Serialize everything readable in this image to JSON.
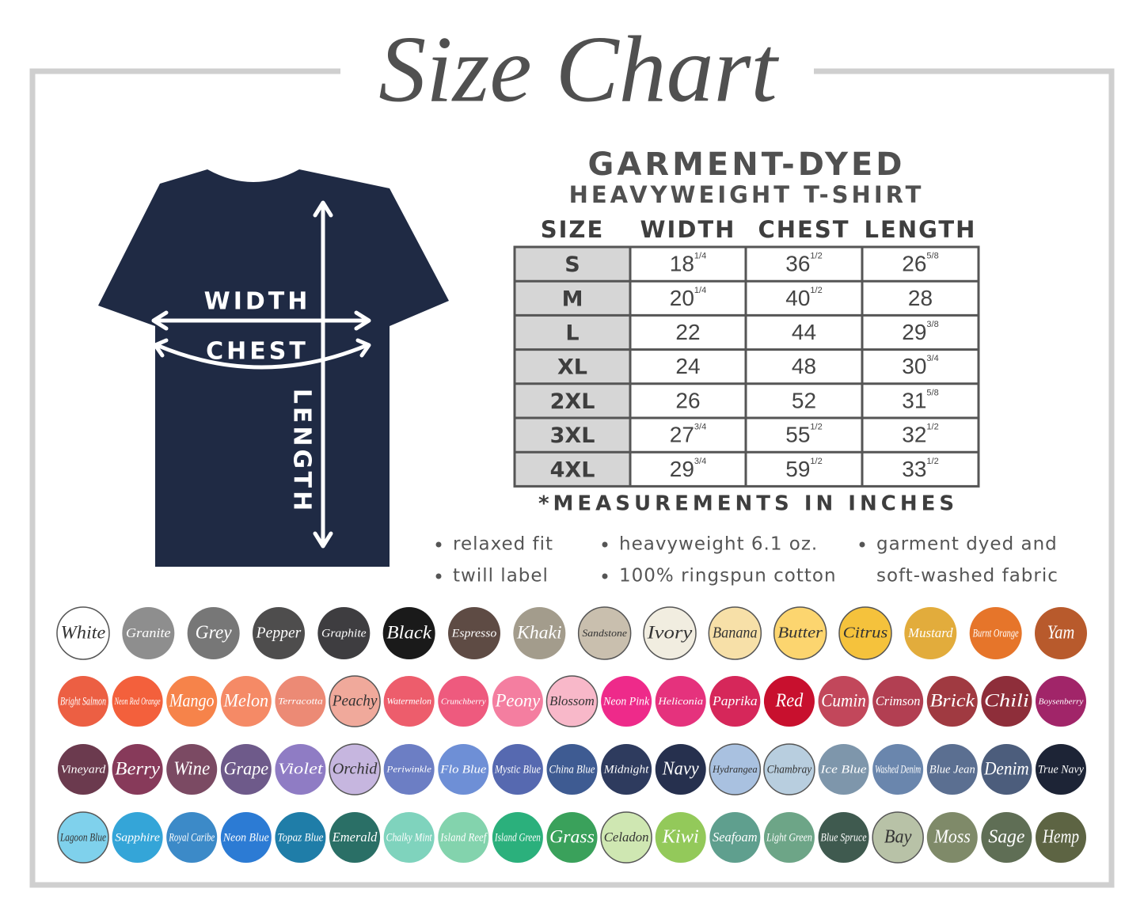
{
  "title": "Size Chart",
  "product": {
    "line1": "GARMENT-DYED",
    "line2": "HEAVYWEIGHT T-SHIRT"
  },
  "diagram": {
    "width": "WIDTH",
    "chest": "CHEST",
    "length": "LENGTH"
  },
  "table": {
    "header": [
      "SIZE",
      "WIDTH",
      "CHEST",
      "LENGTH"
    ],
    "rows": [
      [
        "S",
        {
          "main": "18",
          "sup": "1/4"
        },
        {
          "main": "36",
          "sup": "1/2"
        },
        {
          "main": "26",
          "sup": "5/8"
        }
      ],
      [
        "M",
        {
          "main": "20",
          "sup": "1/4"
        },
        {
          "main": "40",
          "sup": "1/2"
        },
        {
          "main": "28"
        }
      ],
      [
        "L",
        {
          "main": "22"
        },
        {
          "main": "44"
        },
        {
          "main": "29",
          "sup": "3/8"
        }
      ],
      [
        "XL",
        {
          "main": "24"
        },
        {
          "main": "48"
        },
        {
          "main": "30",
          "sup": "3/4"
        }
      ],
      [
        "2XL",
        {
          "main": "26"
        },
        {
          "main": "52"
        },
        {
          "main": "31",
          "sup": "5/8"
        }
      ],
      [
        "3XL",
        {
          "main": "27",
          "sup": "3/4"
        },
        {
          "main": "55",
          "sup": "1/2"
        },
        {
          "main": "32",
          "sup": "1/2"
        }
      ],
      [
        "4XL",
        {
          "main": "29",
          "sup": "3/4"
        },
        {
          "main": "59",
          "sup": "1/2"
        },
        {
          "main": "33",
          "sup": "1/2"
        }
      ]
    ]
  },
  "note": "*MEASUREMENTS IN INCHES",
  "features": [
    [
      "relaxed fit",
      "twill label"
    ],
    [
      "heavyweight 6.1 oz.",
      "100% ringspun cotton"
    ],
    [
      "garment dyed and",
      "soft-washed fabric"
    ]
  ],
  "swatches": [
    [
      {
        "name": "White",
        "color": "#ffffff"
      },
      {
        "name": "Granite",
        "color": "#8e8e8e"
      },
      {
        "name": "Grey",
        "color": "#777777"
      },
      {
        "name": "Pepper",
        "color": "#4e4d4d"
      },
      {
        "name": "Graphite",
        "color": "#3e3d40"
      },
      {
        "name": "Black",
        "color": "#1a1a1a"
      },
      {
        "name": "Espresso",
        "color": "#5e4b44"
      },
      {
        "name": "Khaki",
        "color": "#a39c8c"
      },
      {
        "name": "Sandstone",
        "color": "#c9bfae"
      },
      {
        "name": "Ivory",
        "color": "#f1ede0"
      },
      {
        "name": "Banana",
        "color": "#f7e0a8"
      },
      {
        "name": "Butter",
        "color": "#fcd56f"
      },
      {
        "name": "Citrus",
        "color": "#f5c23c"
      },
      {
        "name": "Mustard",
        "color": "#e2ac3c"
      },
      {
        "name": "Burnt Orange",
        "color": "#e6752a"
      },
      {
        "name": "Yam",
        "color": "#b85a2c"
      }
    ],
    [
      {
        "name": "Bright Salmon",
        "color": "#ec5f43"
      },
      {
        "name": "Neon Red Orange",
        "color": "#f3603c"
      },
      {
        "name": "Mango",
        "color": "#f6834a"
      },
      {
        "name": "Melon",
        "color": "#f58a66"
      },
      {
        "name": "Terracotta",
        "color": "#ec8a75"
      },
      {
        "name": "Peachy",
        "color": "#f0a99b"
      },
      {
        "name": "Watermelon",
        "color": "#ed5d6c"
      },
      {
        "name": "Crunchberry",
        "color": "#ee5a7e"
      },
      {
        "name": "Peony",
        "color": "#f47ea0"
      },
      {
        "name": "Blossom",
        "color": "#f8b8c9"
      },
      {
        "name": "Neon Pink",
        "color": "#ee2a8a"
      },
      {
        "name": "Heliconia",
        "color": "#e5327d"
      },
      {
        "name": "Paprika",
        "color": "#d6275a"
      },
      {
        "name": "Red",
        "color": "#c8102e"
      },
      {
        "name": "Cumin",
        "color": "#c2475b"
      },
      {
        "name": "Crimson",
        "color": "#b23f52"
      },
      {
        "name": "Brick",
        "color": "#a03a41"
      },
      {
        "name": "Chili",
        "color": "#8e2e3a"
      },
      {
        "name": "Boysenberry",
        "color": "#a12569"
      }
    ],
    [
      {
        "name": "Vineyard",
        "color": "#6b3a4e"
      },
      {
        "name": "Berry",
        "color": "#873a5a"
      },
      {
        "name": "Wine",
        "color": "#7b4a63"
      },
      {
        "name": "Grape",
        "color": "#6e5a8a"
      },
      {
        "name": "Violet",
        "color": "#8f7cc4"
      },
      {
        "name": "Orchid",
        "color": "#c6b6df"
      },
      {
        "name": "Periwinkle",
        "color": "#6c7ec4"
      },
      {
        "name": "Flo Blue",
        "color": "#6e8fd6"
      },
      {
        "name": "Mystic Blue",
        "color": "#5669b0"
      },
      {
        "name": "China Blue",
        "color": "#3e5b92"
      },
      {
        "name": "Midnight",
        "color": "#2e3b5e"
      },
      {
        "name": "Navy",
        "color": "#26304e"
      },
      {
        "name": "Hydrangea",
        "color": "#a9c1e0"
      },
      {
        "name": "Chambray",
        "color": "#b8cedf"
      },
      {
        "name": "Ice Blue",
        "color": "#7e96ab"
      },
      {
        "name": "Washed Denim",
        "color": "#6a86ad"
      },
      {
        "name": "Blue Jean",
        "color": "#5b6f91"
      },
      {
        "name": "Denim",
        "color": "#4c5d7c"
      },
      {
        "name": "True Navy",
        "color": "#1d2436"
      }
    ],
    [
      {
        "name": "Lagoon Blue",
        "color": "#7fd1ec"
      },
      {
        "name": "Sapphire",
        "color": "#34a5d8"
      },
      {
        "name": "Royal Caribe",
        "color": "#3c8ac8"
      },
      {
        "name": "Neon Blue",
        "color": "#2c7bd4"
      },
      {
        "name": "Topaz Blue",
        "color": "#1f7da8"
      },
      {
        "name": "Emerald",
        "color": "#2a6f66"
      },
      {
        "name": "Chalky Mint",
        "color": "#7fd3bd"
      },
      {
        "name": "Island Reef",
        "color": "#83d3ad"
      },
      {
        "name": "Island Green",
        "color": "#2bb07c"
      },
      {
        "name": "Grass",
        "color": "#3aa15b"
      },
      {
        "name": "Celadon",
        "color": "#cfe7b2"
      },
      {
        "name": "Kiwi",
        "color": "#93c95a"
      },
      {
        "name": "Seafoam",
        "color": "#5f9f8e"
      },
      {
        "name": "Light Green",
        "color": "#6da587"
      },
      {
        "name": "Blue Spruce",
        "color": "#3f5a4f"
      },
      {
        "name": "Bay",
        "color": "#b8c2a7"
      },
      {
        "name": "Moss",
        "color": "#7f8a69"
      },
      {
        "name": "Sage",
        "color": "#5f6e55"
      },
      {
        "name": "Hemp",
        "color": "#5d6443"
      }
    ]
  ]
}
